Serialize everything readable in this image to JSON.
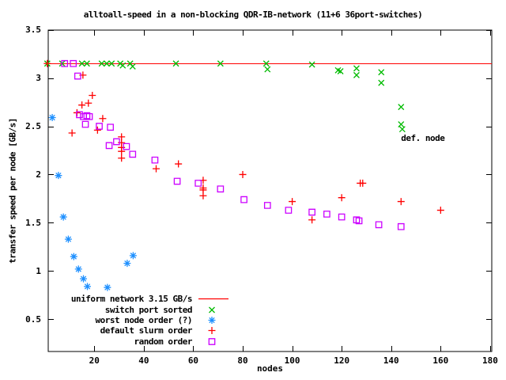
{
  "chart_data": {
    "type": "scatter",
    "title": "alltoall-speed in a non-blocking QDR-IB-network (11+6 36port-switches)",
    "xlabel": "nodes",
    "ylabel": "transfer speed per node [GB/s]",
    "xlim": [
      1.3,
      180.6
    ],
    "ylim": [
      0.17,
      3.5
    ],
    "xticks": [
      20,
      40,
      60,
      80,
      100,
      120,
      140,
      160,
      180
    ],
    "yticks": [
      0.5,
      1,
      1.5,
      2,
      2.5,
      3,
      3.5
    ],
    "grid": false,
    "legend_position": "inside bottom-left",
    "annotation": {
      "text": "def. node",
      "x": 144,
      "y": 2.38
    },
    "reference_line": {
      "label": "uniform network 3.15 GB/s",
      "value": 3.15,
      "color": "#ff0000"
    },
    "series": [
      {
        "name": "switch port sorted",
        "marker": "cross",
        "color": "#00bb00",
        "points": [
          [
            1,
            3.15
          ],
          [
            7,
            3.15
          ],
          [
            15,
            3.15
          ],
          [
            17,
            3.15
          ],
          [
            23,
            3.15
          ],
          [
            25,
            3.15
          ],
          [
            27,
            3.15
          ],
          [
            30.5,
            3.15
          ],
          [
            31.5,
            3.13
          ],
          [
            34.5,
            3.15
          ],
          [
            35.5,
            3.12
          ],
          [
            53,
            3.15
          ],
          [
            71,
            3.15
          ],
          [
            89.5,
            3.15
          ],
          [
            90,
            3.09
          ],
          [
            108,
            3.14
          ],
          [
            118.5,
            3.08
          ],
          [
            119.5,
            3.07
          ],
          [
            126,
            3.1
          ],
          [
            126,
            3.03
          ],
          [
            136,
            3.06
          ],
          [
            136,
            2.95
          ],
          [
            144,
            2.7
          ],
          [
            144,
            2.52
          ],
          [
            144.5,
            2.47
          ]
        ]
      },
      {
        "name": "worst node order (?)",
        "marker": "asterisk",
        "color": "#1e90ff",
        "points": [
          [
            3,
            2.59
          ],
          [
            5.5,
            1.99
          ],
          [
            7.5,
            1.56
          ],
          [
            9.5,
            1.33
          ],
          [
            11.7,
            1.15
          ],
          [
            13.6,
            1.02
          ],
          [
            15.6,
            0.92
          ],
          [
            17.2,
            0.84
          ],
          [
            25.3,
            0.83
          ],
          [
            33.3,
            1.08
          ],
          [
            35.7,
            1.16
          ]
        ]
      },
      {
        "name": "default slurm order",
        "marker": "plus",
        "color": "#ff0000",
        "points": [
          [
            1,
            3.15
          ],
          [
            11,
            2.43
          ],
          [
            13,
            2.64
          ],
          [
            15,
            2.72
          ],
          [
            15.4,
            3.03
          ],
          [
            17.6,
            2.74
          ],
          [
            19.2,
            2.82
          ],
          [
            21.3,
            2.46
          ],
          [
            23.4,
            2.58
          ],
          [
            31,
            2.39
          ],
          [
            31,
            2.33
          ],
          [
            31,
            2.28
          ],
          [
            31,
            2.24
          ],
          [
            31,
            2.17
          ],
          [
            45,
            2.06
          ],
          [
            54,
            2.11
          ],
          [
            64,
            1.94
          ],
          [
            64,
            1.86
          ],
          [
            64,
            1.84
          ],
          [
            64,
            1.78
          ],
          [
            80,
            2.0
          ],
          [
            100,
            1.72
          ],
          [
            108,
            1.53
          ],
          [
            120,
            1.76
          ],
          [
            127.5,
            1.91
          ],
          [
            128.5,
            1.91
          ],
          [
            144,
            1.72
          ],
          [
            160,
            1.63
          ]
        ]
      },
      {
        "name": "random order",
        "marker": "square",
        "color": "#cc00ff",
        "points": [
          [
            8,
            3.15
          ],
          [
            11.5,
            3.15
          ],
          [
            13.3,
            3.02
          ],
          [
            14,
            2.62
          ],
          [
            15.6,
            2.6
          ],
          [
            16.4,
            2.52
          ],
          [
            17,
            2.61
          ],
          [
            18,
            2.6
          ],
          [
            22,
            2.5
          ],
          [
            26.5,
            2.49
          ],
          [
            26,
            2.3
          ],
          [
            29,
            2.34
          ],
          [
            33,
            2.29
          ],
          [
            35.5,
            2.21
          ],
          [
            44.5,
            2.15
          ],
          [
            53.5,
            1.93
          ],
          [
            62,
            1.91
          ],
          [
            71,
            1.85
          ],
          [
            80.5,
            1.74
          ],
          [
            90,
            1.68
          ],
          [
            98.5,
            1.63
          ],
          [
            108,
            1.61
          ],
          [
            114,
            1.59
          ],
          [
            120,
            1.56
          ],
          [
            126,
            1.53
          ],
          [
            127,
            1.52
          ],
          [
            135,
            1.48
          ],
          [
            144,
            1.46
          ]
        ]
      }
    ],
    "legend": [
      {
        "label": "uniform network 3.15 GB/s",
        "marker": "line",
        "color": "#ff0000"
      },
      {
        "label": "switch port sorted",
        "marker": "cross",
        "color": "#00bb00"
      },
      {
        "label": "worst node order (?)",
        "marker": "asterisk",
        "color": "#1e90ff"
      },
      {
        "label": "default slurm order",
        "marker": "plus",
        "color": "#ff0000"
      },
      {
        "label": "random order",
        "marker": "square",
        "color": "#cc00ff"
      }
    ]
  },
  "colors": {
    "background": "#ffffff",
    "axis": "#000000",
    "text": "#000000"
  }
}
